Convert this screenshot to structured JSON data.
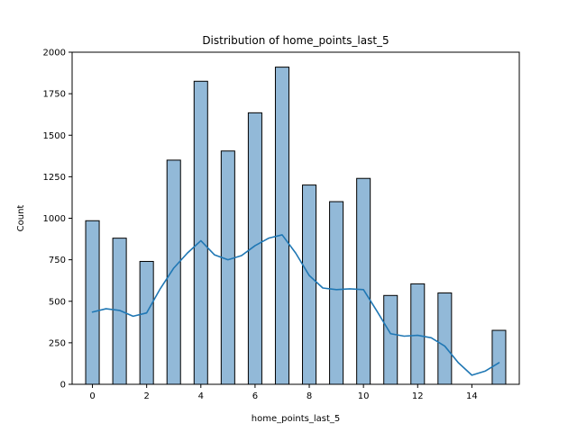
{
  "chart_data": {
    "type": "bar",
    "title": "Distribution of home_points_last_5",
    "xlabel": "home_points_last_5",
    "ylabel": "Count",
    "xlim": [
      -0.75,
      15.75
    ],
    "ylim": [
      0,
      2000
    ],
    "xticks": [
      0,
      2,
      4,
      6,
      8,
      10,
      12,
      14
    ],
    "yticks": [
      0,
      250,
      500,
      750,
      1000,
      1250,
      1500,
      1750,
      2000
    ],
    "bar_width": 0.5,
    "bars": [
      {
        "x": 0,
        "count": 985
      },
      {
        "x": 1,
        "count": 880
      },
      {
        "x": 2,
        "count": 740
      },
      {
        "x": 3,
        "count": 1350
      },
      {
        "x": 4,
        "count": 1825
      },
      {
        "x": 5,
        "count": 1405
      },
      {
        "x": 6,
        "count": 1635
      },
      {
        "x": 7,
        "count": 1910
      },
      {
        "x": 8,
        "count": 1200
      },
      {
        "x": 9,
        "count": 1100
      },
      {
        "x": 10,
        "count": 1240
      },
      {
        "x": 11,
        "count": 535
      },
      {
        "x": 12,
        "count": 605
      },
      {
        "x": 13,
        "count": 550
      },
      {
        "x": 15,
        "count": 325
      }
    ],
    "kde": {
      "x": [
        0,
        0.5,
        1,
        1.5,
        2,
        2.5,
        3,
        3.5,
        4,
        4.5,
        5,
        5.5,
        6,
        6.5,
        7,
        7.5,
        8,
        8.5,
        9,
        9.5,
        10,
        10.5,
        11,
        11.5,
        12,
        12.5,
        13,
        13.5,
        14,
        14.5,
        15
      ],
      "y": [
        435,
        455,
        445,
        410,
        430,
        575,
        700,
        790,
        865,
        780,
        750,
        775,
        835,
        880,
        900,
        790,
        655,
        580,
        570,
        575,
        570,
        440,
        305,
        290,
        295,
        280,
        230,
        130,
        55,
        80,
        130
      ]
    },
    "grid": false,
    "legend": "none",
    "colors": {
      "bar_fill": "#92b9d8",
      "bar_edge": "#000000",
      "kde_line": "#1f77b4"
    }
  }
}
